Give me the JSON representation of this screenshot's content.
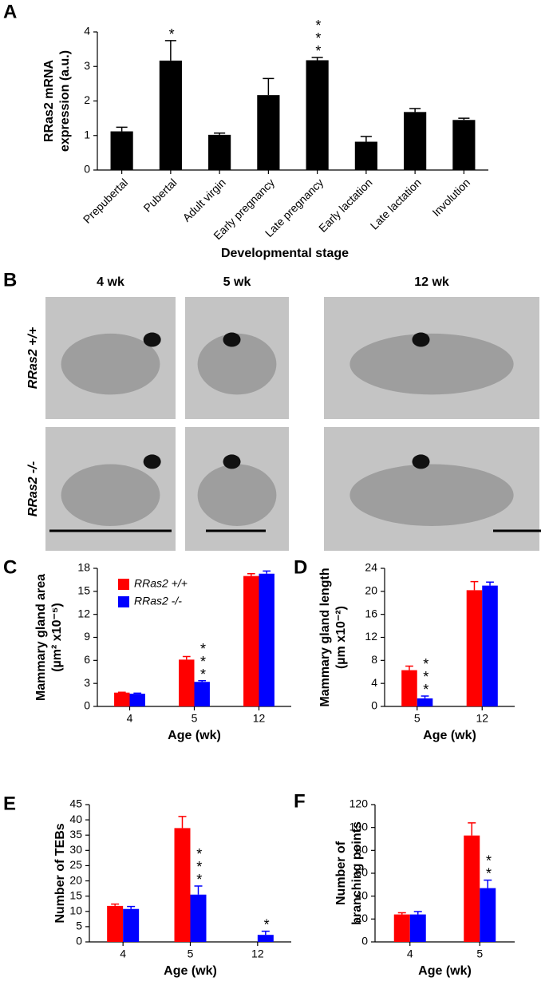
{
  "chart_data": [
    {
      "type": "bar",
      "panel": "A",
      "ylabel": [
        "RRas2 mRNA",
        "expression (a.u.)"
      ],
      "xlabel": "Developmental stage",
      "categories": [
        "Prepubertal",
        "Pubertal",
        "Adult virgin",
        "Early pregnancy",
        "Late pregnancy",
        "Early lactation",
        "Late lactation",
        "Involution"
      ],
      "values": [
        1.12,
        3.17,
        1.02,
        2.17,
        3.18,
        0.82,
        1.68,
        1.45
      ],
      "errors": [
        0.12,
        0.58,
        0.05,
        0.48,
        0.08,
        0.15,
        0.1,
        0.05
      ],
      "significance": [
        null,
        "*",
        null,
        null,
        "***",
        null,
        null,
        null
      ],
      "color": "#000000",
      "ylim": [
        0,
        4
      ],
      "yticks": [
        0,
        1,
        2,
        3,
        4
      ]
    },
    {
      "type": "bar",
      "panel": "C",
      "ylabel": [
        "Mammary gland area",
        "(µm² x10⁻⁵)"
      ],
      "xlabel": "Age (wk)",
      "categories": [
        "4",
        "5",
        "12"
      ],
      "legend": "top-left",
      "series": [
        {
          "name": "RRas2 +/+",
          "color": "#ff0000",
          "values": [
            1.8,
            6.1,
            17.0
          ],
          "errors": [
            0.05,
            0.4,
            0.3
          ]
        },
        {
          "name": "RRas2 -/-",
          "color": "#0000ff",
          "values": [
            1.65,
            3.2,
            17.3
          ],
          "errors": [
            0.08,
            0.15,
            0.35
          ],
          "significance": [
            null,
            "***",
            null
          ]
        }
      ],
      "ylim": [
        0,
        18
      ],
      "yticks": [
        0,
        3,
        6,
        9,
        12,
        15,
        18
      ]
    },
    {
      "type": "bar",
      "panel": "D",
      "ylabel": [
        "Mammary gland length",
        "(µm x10⁻²)"
      ],
      "xlabel": "Age (wk)",
      "categories": [
        "5",
        "12"
      ],
      "series": [
        {
          "name": "RRas2 +/+",
          "color": "#ff0000",
          "values": [
            6.3,
            20.2
          ],
          "errors": [
            0.7,
            1.5
          ]
        },
        {
          "name": "RRas2 -/-",
          "color": "#0000ff",
          "values": [
            1.4,
            21.0
          ],
          "errors": [
            0.4,
            0.6
          ],
          "significance": [
            "***",
            null
          ]
        }
      ],
      "ylim": [
        0,
        24
      ],
      "yticks": [
        0,
        4,
        8,
        12,
        16,
        20,
        24
      ]
    },
    {
      "type": "bar",
      "panel": "E",
      "ylabel": [
        "Number of TEBs"
      ],
      "xlabel": "Age (wk)",
      "categories": [
        "4",
        "5",
        "12"
      ],
      "series": [
        {
          "name": "RRas2 +/+",
          "color": "#ff0000",
          "values": [
            11.8,
            37.3,
            null
          ],
          "errors": [
            0.6,
            3.8,
            null
          ]
        },
        {
          "name": "RRas2 -/-",
          "color": "#0000ff",
          "values": [
            10.8,
            15.5,
            2.3
          ],
          "errors": [
            0.8,
            2.8,
            1.2
          ],
          "significance": [
            null,
            "***",
            "*"
          ]
        }
      ],
      "ylim": [
        0,
        45
      ],
      "yticks": [
        0,
        5,
        10,
        15,
        20,
        25,
        30,
        35,
        40,
        45
      ]
    },
    {
      "type": "bar",
      "panel": "F",
      "ylabel": [
        "Number of",
        "branching points"
      ],
      "xlabel": "Age (wk)",
      "categories": [
        "4",
        "5"
      ],
      "series": [
        {
          "name": "RRas2 +/+",
          "color": "#ff0000",
          "values": [
            24,
            93
          ],
          "errors": [
            1.5,
            11
          ]
        },
        {
          "name": "RRas2 -/-",
          "color": "#0000ff",
          "values": [
            24,
            47
          ],
          "errors": [
            2.5,
            7
          ],
          "significance": [
            null,
            "**"
          ]
        }
      ],
      "ylim": [
        0,
        120
      ],
      "yticks": [
        0,
        20,
        40,
        60,
        80,
        100,
        120
      ]
    }
  ],
  "image_panel": {
    "panel": "B",
    "columns": [
      "4 wk",
      "5 wk",
      "12 wk"
    ],
    "rows": [
      "RRas2 +/+",
      "RRas2 -/-"
    ]
  }
}
